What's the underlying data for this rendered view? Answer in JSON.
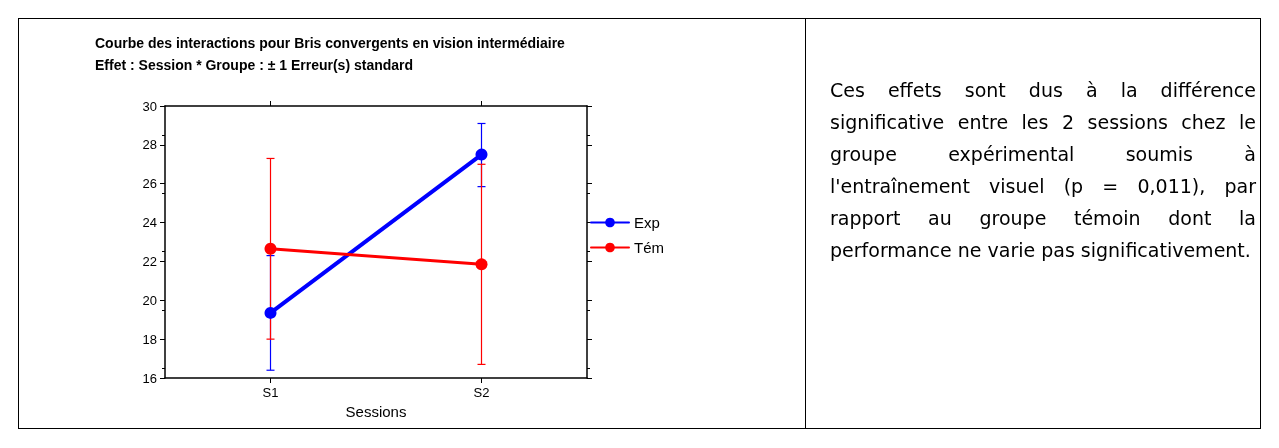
{
  "chart_data": {
    "type": "line",
    "title": "Courbe des interactions pour Bris convergents en vision intermédiaire",
    "subtitle": "Effet : Session * Groupe : ± 1 Erreur(s) standard",
    "xlabel": "Sessions",
    "categories": [
      "S1",
      "S2"
    ],
    "series": [
      {
        "name": "Exp",
        "color": "#0000ff",
        "values": [
          19.35,
          27.5
        ],
        "errors": [
          [
            16.4,
            22.3
          ],
          [
            25.85,
            29.1
          ]
        ]
      },
      {
        "name": "Tém",
        "color": "#ff0000",
        "values": [
          22.65,
          21.85
        ],
        "errors": [
          [
            18.0,
            27.3
          ],
          [
            16.7,
            27.0
          ]
        ]
      }
    ],
    "ylim": [
      16,
      30
    ],
    "yticks": [
      16,
      18,
      20,
      22,
      24,
      26,
      28,
      30
    ],
    "grid": false,
    "legend": "right",
    "marker": "circle",
    "line_style": "solid",
    "annotations": [
      "Ces effets sont dus à la différence significative entre les 2 sessions chez le groupe expérimental soumis à l'entraînement visuel (p = 0,011), par rapport au groupe témoin dont la performance ne varie pas significativement."
    ]
  }
}
